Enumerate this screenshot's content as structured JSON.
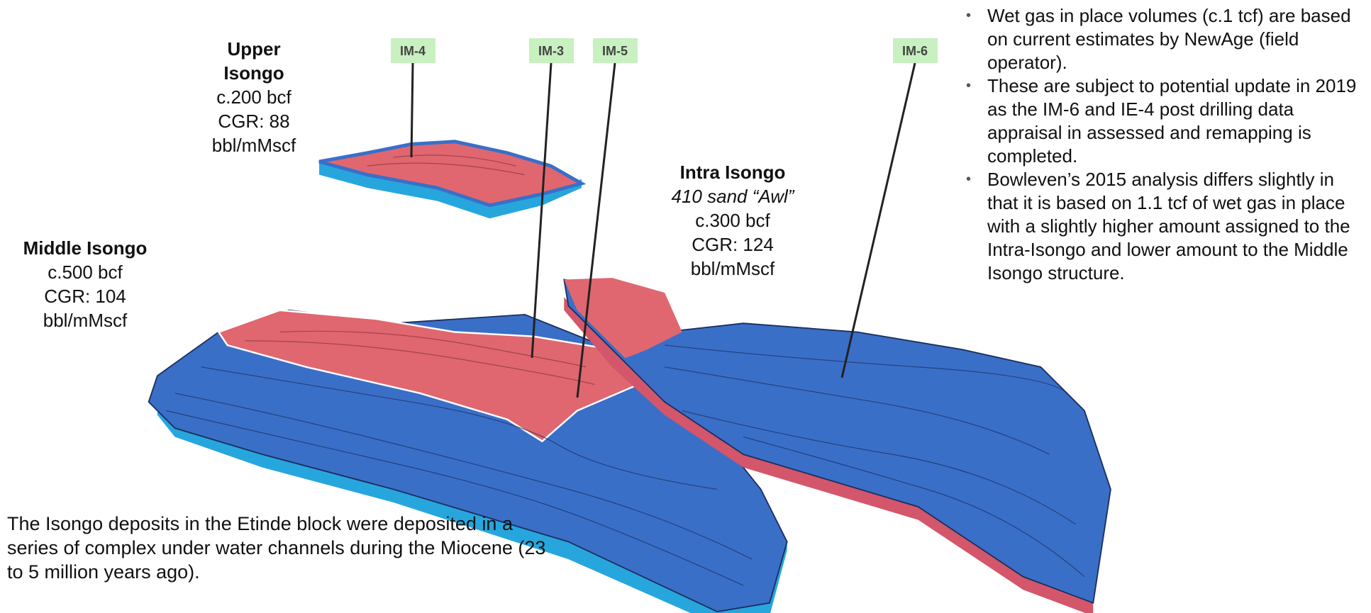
{
  "wells": [
    "IM-4",
    "IM-3",
    "IM-5",
    "IM-6"
  ],
  "zones": [
    {
      "name": [
        "Upper",
        "Isongo"
      ],
      "lines": [
        "c.200 bcf",
        "CGR: 88",
        "bbl/mMscf"
      ]
    },
    {
      "name": [
        "Middle Isongo"
      ],
      "lines": [
        "c.500 bcf",
        "CGR: 104",
        "bbl/mMscf"
      ]
    },
    {
      "name": [
        "Intra Isongo"
      ],
      "subtitle": "410 sand “Awl”",
      "lines": [
        "c.300 bcf",
        "CGR: 124",
        "bbl/mMscf"
      ]
    }
  ],
  "bullets": [
    "Wet gas in place volumes (c.1 tcf) are based on current estimates by NewAge (field operator).",
    "These are subject to potential update in 2019 as the IM-6 and IE-4 post drilling data appraisal in assessed and remapping is completed.",
    "Bowleven’s 2015 analysis differs slightly in that it is based on 1.1 tcf of wet gas in place with a slightly higher amount assigned to the Intra-Isongo and lower amount to the Middle Isongo structure."
  ],
  "caption": "The Isongo deposits in the Etinde block were deposited in a series of complex under water channels during the Miocene (23 to 5 million years ago)."
}
